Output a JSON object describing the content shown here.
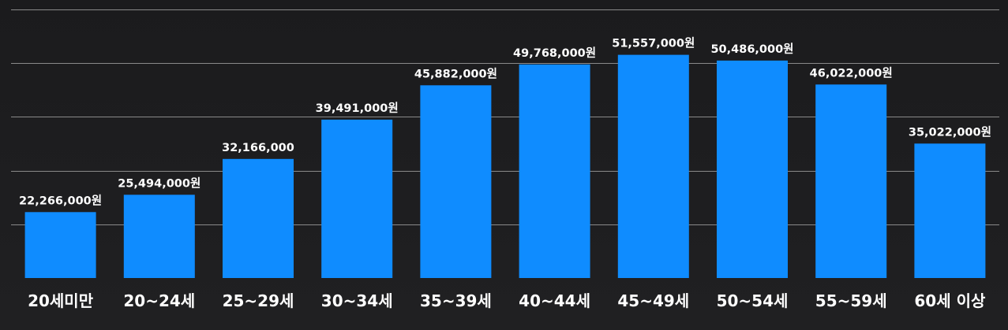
{
  "chart_data": {
    "type": "bar",
    "categories": [
      "20세미만",
      "20~24세",
      "25~29세",
      "30~34세",
      "35~39세",
      "40~44세",
      "45~49세",
      "50~54세",
      "55~59세",
      "60세 이상"
    ],
    "values": [
      22266000,
      25494000,
      32166000,
      39491000,
      45882000,
      49768000,
      51557000,
      50486000,
      46022000,
      35022000
    ],
    "value_labels": [
      "22,266,000원",
      "25,494,000원",
      "32,166,000",
      "39,491,000원",
      "45,882,000원",
      "49,768,000원",
      "51,557,000원",
      "50,486,000원",
      "46,022,000원",
      "35,022,000원"
    ],
    "title": "",
    "xlabel": "",
    "ylabel": "",
    "ylim": [
      10000000,
      60000000
    ],
    "gridlines": [
      20000000,
      30000000,
      40000000,
      50000000,
      60000000
    ],
    "grid": true,
    "legend": "none",
    "bar_color": "#0f8cff",
    "background_color": "#1c1c1e",
    "text_color": "#ffffff",
    "grid_color": "#8a8a8a"
  }
}
